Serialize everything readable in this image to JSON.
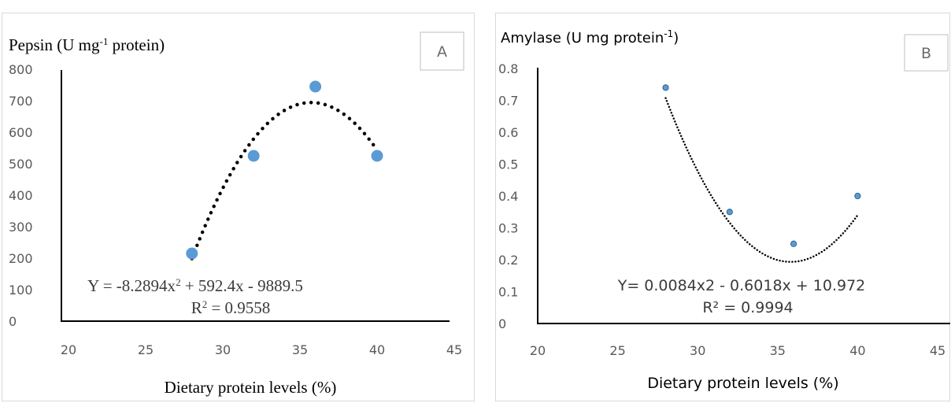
{
  "colors": {
    "marker": "#5b9bd5",
    "trendline": "#000000",
    "axis": "#000000",
    "tick_text": "#595959",
    "panel_border": "#d9d9d9",
    "label_box_border": "#bfbfbf"
  },
  "chart_data": [
    {
      "type": "scatter",
      "panel_label": "A",
      "ylabel_main": "Pepsin (U mg",
      "ylabel_sup": "-1",
      "ylabel_end": " protein)",
      "xlabel": "Dietary protein levels (%)",
      "xlim": [
        20,
        45
      ],
      "ylim": [
        0,
        800
      ],
      "xticks": [
        "20",
        "25",
        "30",
        "35",
        "40",
        "45"
      ],
      "yticks": [
        "0",
        "100",
        "200",
        "300",
        "400",
        "500",
        "600",
        "700",
        "800"
      ],
      "x": [
        28,
        32,
        36,
        40
      ],
      "y": [
        215,
        525,
        745,
        525
      ],
      "trendline": {
        "type": "polynomial",
        "order": 2,
        "a": -8.2894,
        "b": 592.4,
        "c": -9889.5,
        "x_range": [
          28,
          40
        ],
        "style": "dotted"
      },
      "equation_part1": "Y = -8.2894x",
      "equation_sup": "2",
      "equation_part2": " + 592.4x - 9889.5",
      "r2_label": "R",
      "r2_sup": "2",
      "r2_value": " = 0.9558"
    },
    {
      "type": "scatter",
      "panel_label": "B",
      "ylabel_main": "Amylase (U mg protein",
      "ylabel_sup": "-1",
      "ylabel_end": ")",
      "xlabel": "Dietary protein levels (%)",
      "xlim": [
        20,
        45
      ],
      "ylim": [
        0,
        0.8
      ],
      "xticks": [
        "20",
        "25",
        "30",
        "35",
        "40",
        "45"
      ],
      "yticks": [
        "0",
        "0.1",
        "0.2",
        "0.3",
        "0.4",
        "0.5",
        "0.6",
        "0.7",
        "0.8"
      ],
      "x": [
        28,
        32,
        36,
        40
      ],
      "y": [
        0.74,
        0.35,
        0.25,
        0.4
      ],
      "trendline": {
        "type": "polynomial",
        "order": 2,
        "a": 0.0084,
        "b": -0.6018,
        "c": 10.972,
        "x_range": [
          28,
          40
        ],
        "style": "dotted"
      },
      "equation": "Y= 0.0084x2 - 0.6018x + 10.972",
      "r2_text": "R² = 0.9994"
    }
  ]
}
